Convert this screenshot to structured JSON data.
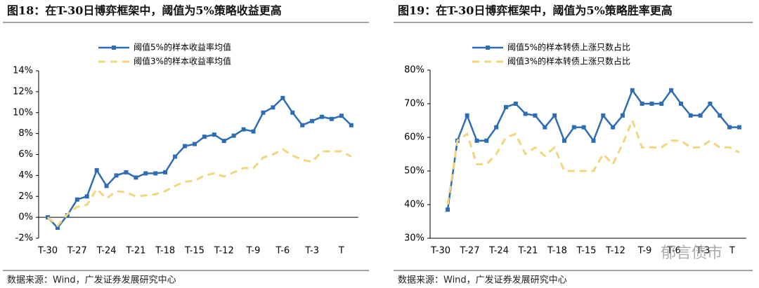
{
  "chart_data": [
    {
      "type": "line",
      "title": "图18：在T-30日博弈框架中，阈值为5%策略收益更高",
      "source": "数据来源：Wind，广发证券发展研究中心",
      "categories": [
        "T-30",
        null,
        null,
        "T-27",
        null,
        null,
        "T-24",
        null,
        null,
        "T-21",
        null,
        null,
        "T-18",
        null,
        null,
        "T-15",
        null,
        null,
        "T-12",
        null,
        null,
        "T-9",
        null,
        null,
        "T-6",
        null,
        null,
        "T-3",
        null,
        null,
        "T",
        null
      ],
      "series": [
        {
          "name": "阈值5%的样本收益率均值",
          "color": "#2e6db4",
          "marker": "square",
          "dashed": false,
          "values": [
            0,
            -1,
            0.2,
            1.7,
            2.0,
            4.5,
            3.0,
            4.0,
            4.3,
            3.8,
            4.2,
            4.2,
            4.3,
            5.8,
            6.8,
            7.0,
            7.7,
            7.9,
            7.3,
            7.8,
            8.4,
            8.2,
            10.0,
            10.5,
            11.4,
            10.0,
            8.8,
            9.2,
            9.6,
            9.4,
            9.7,
            8.8
          ]
        },
        {
          "name": "阈值3%的样本收益率均值",
          "color": "#f3d580",
          "marker": null,
          "dashed": true,
          "values": [
            0,
            -0.8,
            0.3,
            1.0,
            1.2,
            2.7,
            1.8,
            2.5,
            2.4,
            2.0,
            2.1,
            2.2,
            2.5,
            3.0,
            3.4,
            3.5,
            4.0,
            4.2,
            3.9,
            4.3,
            4.7,
            4.7,
            5.7,
            6.0,
            6.5,
            5.9,
            5.5,
            5.3,
            6.3,
            6.3,
            6.3,
            5.8
          ]
        }
      ],
      "ylim": [
        -2,
        14
      ],
      "yticks": [
        {
          "value": -2,
          "label": "-2%"
        },
        {
          "value": 0,
          "label": "0%"
        },
        {
          "value": 2,
          "label": "2%"
        },
        {
          "value": 4,
          "label": "4%"
        },
        {
          "value": 6,
          "label": "6%"
        },
        {
          "value": 8,
          "label": "8%"
        },
        {
          "value": 10,
          "label": "10%"
        },
        {
          "value": 12,
          "label": "12%"
        },
        {
          "value": 14,
          "label": "14%"
        }
      ]
    },
    {
      "type": "line",
      "title": "图19：在T-30日博弈框架中，阈值为5%策略胜率更高",
      "source": "数据来源：Wind，广发证券发展研究中心",
      "categories": [
        "T-30",
        null,
        null,
        "T-27",
        null,
        null,
        "T-24",
        null,
        null,
        "T-21",
        null,
        null,
        "T-18",
        null,
        null,
        "T-15",
        null,
        null,
        "T-12",
        null,
        null,
        "T-9",
        null,
        null,
        "T-6",
        null,
        null,
        "T-3",
        null,
        null,
        "T"
      ],
      "series": [
        {
          "name": "阈值5%的样本转债上涨只数占比",
          "color": "#2e6db4",
          "marker": "square",
          "dashed": false,
          "values": [
            38.5,
            59,
            66.5,
            59,
            59,
            63,
            69,
            70,
            67,
            66.5,
            63,
            66.5,
            59,
            63,
            63,
            59,
            66.5,
            63,
            66.5,
            74,
            70,
            70,
            70,
            74,
            70,
            66.5,
            66.5,
            70,
            66.5,
            63,
            63
          ]
        },
        {
          "name": "阈值3%的样本转债上涨只数占比",
          "color": "#f3d580",
          "marker": null,
          "dashed": true,
          "values": [
            40,
            59,
            61,
            52,
            52,
            55,
            60,
            61,
            55,
            57,
            54.5,
            57,
            50,
            50,
            50,
            50,
            55,
            52,
            58,
            65,
            57,
            57,
            57,
            59,
            59,
            57,
            57,
            59,
            57,
            57,
            55.5
          ]
        }
      ],
      "ylim": [
        30,
        80
      ],
      "yticks": [
        {
          "value": 30,
          "label": "30%"
        },
        {
          "value": 40,
          "label": "40%"
        },
        {
          "value": 50,
          "label": "50%"
        },
        {
          "value": 60,
          "label": "60%"
        },
        {
          "value": 70,
          "label": "70%"
        },
        {
          "value": 80,
          "label": "80%"
        }
      ]
    }
  ],
  "watermark": "郁言债市"
}
